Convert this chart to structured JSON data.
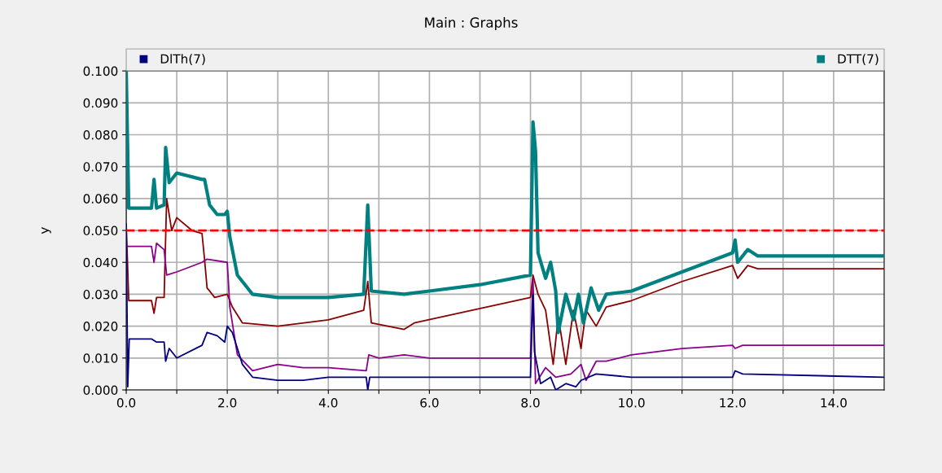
{
  "chart_data": {
    "type": "line",
    "title": "Main : Graphs",
    "ylabel": "y",
    "xlim": [
      0,
      15
    ],
    "ylim": [
      0,
      0.1
    ],
    "xticks": [
      {
        "value": 0,
        "label": "0.0"
      },
      {
        "value": 1,
        "label": null
      },
      {
        "value": 2,
        "label": "2.0"
      },
      {
        "value": 3,
        "label": null
      },
      {
        "value": 4,
        "label": "4.0"
      },
      {
        "value": 5,
        "label": null
      },
      {
        "value": 6,
        "label": "6.0"
      },
      {
        "value": 7,
        "label": null
      },
      {
        "value": 8,
        "label": "8.0"
      },
      {
        "value": 9,
        "label": null
      },
      {
        "value": 10,
        "label": "10.0"
      },
      {
        "value": 11,
        "label": null
      },
      {
        "value": 12,
        "label": "12.0"
      },
      {
        "value": 13,
        "label": null
      },
      {
        "value": 14,
        "label": "14.0"
      }
    ],
    "yticks": [
      {
        "value": 0,
        "label": "0.000"
      },
      {
        "value": 0.01,
        "label": "0.010"
      },
      {
        "value": 0.02,
        "label": "0.020"
      },
      {
        "value": 0.03,
        "label": "0.030"
      },
      {
        "value": 0.04,
        "label": "0.040"
      },
      {
        "value": 0.05,
        "label": "0.050"
      },
      {
        "value": 0.06,
        "label": "0.060"
      },
      {
        "value": 0.07,
        "label": "0.070"
      },
      {
        "value": 0.08,
        "label": "0.080"
      },
      {
        "value": 0.09,
        "label": "0.090"
      },
      {
        "value": 0.1,
        "label": "0.100"
      }
    ],
    "grid": true,
    "legend": "top",
    "marker": "none",
    "line_style": "solid",
    "ref_lines": [
      {
        "axis": "y",
        "value": 0.05,
        "color": "#ff0000",
        "line_style": "dashed"
      }
    ],
    "series": [
      {
        "color": "#8b0000",
        "x": [
          0,
          0.05,
          0.5,
          0.55,
          0.6,
          0.75,
          0.8,
          0.9,
          1.0,
          1.3,
          1.5,
          1.55,
          1.6,
          1.75,
          2.0,
          2.1,
          2.3,
          3.0,
          4.0,
          4.7,
          4.78,
          4.85,
          5.5,
          5.7,
          8.0,
          8.05,
          8.15,
          8.3,
          8.45,
          8.55,
          8.7,
          8.85,
          9.0,
          9.1,
          9.3,
          9.5,
          10,
          11,
          12,
          12.1,
          12.3,
          12.5,
          15
        ],
        "values": [
          0.052,
          0.028,
          0.028,
          0.024,
          0.029,
          0.029,
          0.06,
          0.05,
          0.054,
          0.05,
          0.049,
          0.041,
          0.032,
          0.029,
          0.03,
          0.026,
          0.021,
          0.02,
          0.022,
          0.025,
          0.034,
          0.021,
          0.019,
          0.021,
          0.029,
          0.036,
          0.03,
          0.025,
          0.008,
          0.023,
          0.008,
          0.025,
          0.013,
          0.025,
          0.02,
          0.026,
          0.028,
          0.034,
          0.039,
          0.035,
          0.039,
          0.038,
          0.038
        ]
      },
      {
        "color": "#8b008b",
        "x": [
          0,
          0.5,
          0.55,
          0.6,
          0.75,
          0.8,
          1.0,
          1.5,
          1.6,
          2.0,
          2.05,
          2.2,
          2.5,
          3.0,
          3.5,
          4.0,
          4.75,
          4.8,
          5.0,
          5.5,
          6.0,
          8.0,
          8.05,
          8.1,
          8.3,
          8.5,
          8.8,
          9.0,
          9.1,
          9.3,
          9.5,
          10,
          11,
          12,
          12.05,
          12.2,
          15
        ],
        "values": [
          0.045,
          0.045,
          0.04,
          0.046,
          0.044,
          0.036,
          0.037,
          0.04,
          0.041,
          0.04,
          0.026,
          0.011,
          0.006,
          0.008,
          0.007,
          0.007,
          0.006,
          0.011,
          0.01,
          0.011,
          0.01,
          0.01,
          0.035,
          0.002,
          0.007,
          0.004,
          0.005,
          0.008,
          0.003,
          0.009,
          0.009,
          0.011,
          0.013,
          0.014,
          0.013,
          0.014,
          0.014
        ]
      },
      {
        "name": "DlTh(7)",
        "color": "#000080",
        "x": [
          0,
          0.03,
          0.06,
          0.5,
          0.6,
          0.75,
          0.78,
          0.85,
          1.0,
          1.5,
          1.6,
          1.8,
          1.95,
          2.0,
          2.1,
          2.3,
          2.5,
          3.0,
          3.5,
          4.0,
          4.75,
          4.78,
          4.82,
          8.0,
          8.05,
          8.08,
          8.2,
          8.4,
          8.5,
          8.7,
          8.9,
          9.0,
          9.3,
          10,
          12,
          12.05,
          12.2,
          15
        ],
        "values": [
          0.052,
          0.001,
          0.016,
          0.016,
          0.015,
          0.015,
          0.009,
          0.013,
          0.01,
          0.014,
          0.018,
          0.017,
          0.015,
          0.02,
          0.018,
          0.008,
          0.004,
          0.003,
          0.003,
          0.004,
          0.004,
          0.0,
          0.004,
          0.004,
          0.03,
          0.012,
          0.002,
          0.004,
          0.0,
          0.002,
          0.001,
          0.003,
          0.005,
          0.004,
          0.004,
          0.006,
          0.005,
          0.004
        ]
      },
      {
        "name": "DTT(7)",
        "color": "#008080",
        "x": [
          0,
          0.05,
          0.5,
          0.55,
          0.6,
          0.75,
          0.78,
          0.85,
          1.0,
          1.5,
          1.55,
          1.65,
          1.8,
          1.95,
          2.0,
          2.05,
          2.2,
          2.5,
          3.0,
          4.0,
          4.7,
          4.78,
          4.85,
          5.5,
          6.0,
          7.0,
          8.0,
          8.05,
          8.1,
          8.15,
          8.3,
          8.4,
          8.5,
          8.55,
          8.7,
          8.85,
          8.95,
          9.05,
          9.2,
          9.35,
          9.5,
          10,
          11,
          12,
          12.05,
          12.1,
          12.3,
          12.5,
          15
        ],
        "values": [
          0.1,
          0.057,
          0.057,
          0.066,
          0.057,
          0.058,
          0.076,
          0.065,
          0.068,
          0.066,
          0.066,
          0.058,
          0.055,
          0.055,
          0.056,
          0.048,
          0.036,
          0.03,
          0.029,
          0.029,
          0.03,
          0.058,
          0.031,
          0.03,
          0.031,
          0.033,
          0.036,
          0.084,
          0.075,
          0.043,
          0.035,
          0.04,
          0.031,
          0.018,
          0.03,
          0.022,
          0.03,
          0.021,
          0.032,
          0.025,
          0.03,
          0.031,
          0.037,
          0.043,
          0.047,
          0.04,
          0.044,
          0.042,
          0.042
        ]
      }
    ]
  }
}
